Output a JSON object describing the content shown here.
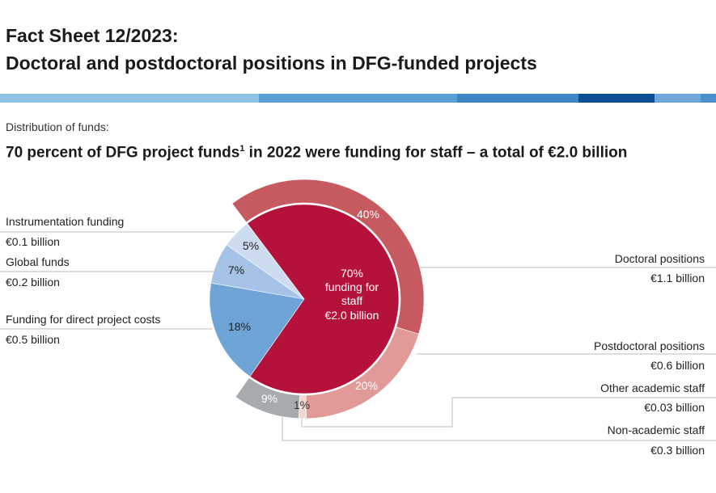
{
  "header": {
    "title_line1": "Fact Sheet 12/2023:",
    "title_line2": "Doctoral and postdoctoral positions in DFG-funded projects"
  },
  "stripe_colors": [
    "#8fc0e6",
    "#5a9fd6",
    "#3d86c6",
    "#0a4f96",
    "#6fa7d8",
    "#4b8fcf"
  ],
  "section_label": "Distribution of funds:",
  "headline": {
    "text": "70 percent of DFG project funds",
    "footnote": "1",
    "text_after": " in 2022 were funding for staff – a total of €2.0 billion"
  },
  "chart_data": {
    "type": "pie",
    "title": "70 percent of DFG project funds in 2022 were funding for staff – a total of €2.0 billion",
    "total_label": "70% funding for staff €2.0 billion",
    "center_text": [
      "70%",
      "funding for",
      "staff",
      "€2.0 billion"
    ],
    "inner_slices": [
      {
        "name": "Funding for staff",
        "percent": 70,
        "value_label": "€2.0 billion",
        "color": "#b5123b"
      },
      {
        "name": "Funding for direct project costs",
        "percent": 18,
        "value_label": "€0.5 billion",
        "color": "#6fa4d6"
      },
      {
        "name": "Global funds",
        "percent": 7,
        "value_label": "€0.2 billion",
        "color": "#a5c3e6"
      },
      {
        "name": "Instrumentation funding",
        "percent": 5,
        "value_label": "€0.1 billion",
        "color": "#cddcef"
      }
    ],
    "outer_slices": [
      {
        "name": "Doctoral positions",
        "percent": 40,
        "value_label": "€1.1 billion",
        "color": "#c75a60"
      },
      {
        "name": "Postdoctoral positions",
        "percent": 20,
        "value_label": "€0.6 billion",
        "color": "#e29a98"
      },
      {
        "name": "Other academic staff",
        "percent": 1,
        "value_label": "€0.03 billion",
        "color": "#f1d6d2"
      },
      {
        "name": "Non-academic staff",
        "percent": 9,
        "value_label": "€0.3 billion",
        "color": "#a7abad"
      }
    ],
    "labels": {
      "outer_pcts": [
        "40%",
        "20%",
        "1%",
        "9%"
      ],
      "inner_pcts": [
        "18%",
        "7%",
        "5%"
      ]
    }
  }
}
